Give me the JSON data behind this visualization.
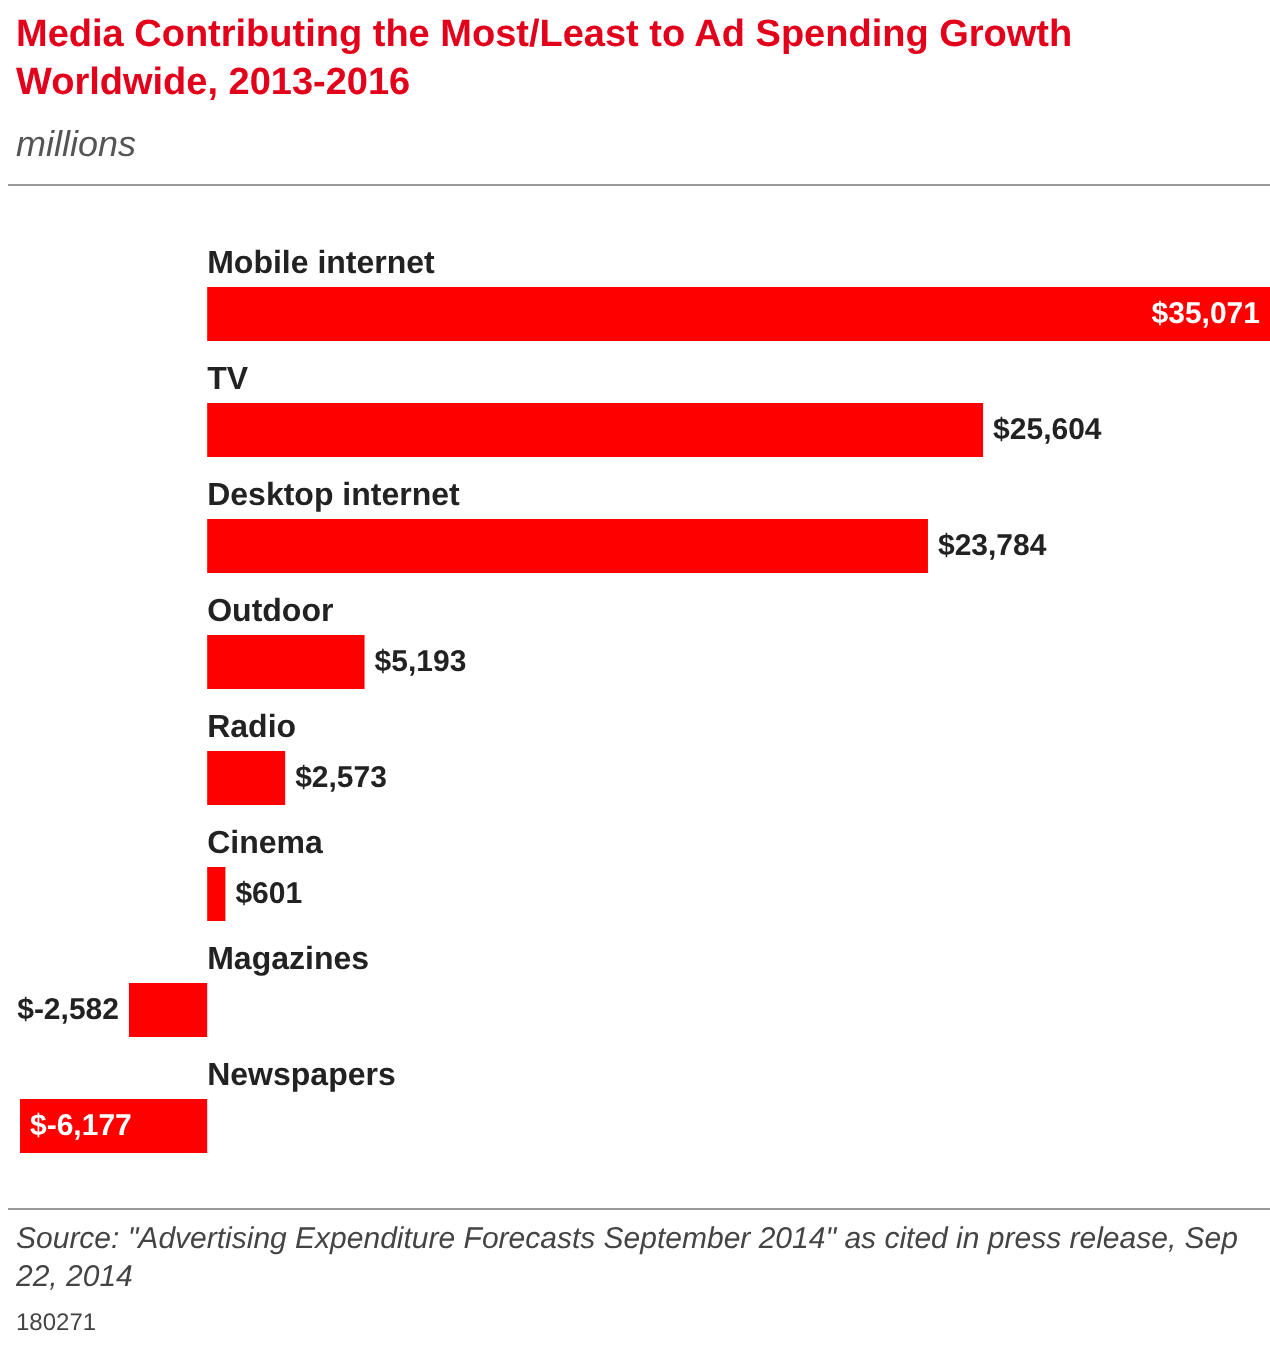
{
  "chart_data": {
    "type": "bar",
    "orientation": "horizontal",
    "title": "Media Contributing the Most/Least to Ad Spending Growth Worldwide, 2013-2016",
    "subtitle": "millions",
    "categories": [
      "Mobile internet",
      "TV",
      "Desktop internet",
      "Outdoor",
      "Radio",
      "Cinema",
      "Magazines",
      "Newspapers"
    ],
    "values": [
      35071,
      25604,
      23784,
      5193,
      2573,
      601,
      -2582,
      -6177
    ],
    "value_labels": [
      "$35,071",
      "$25,604",
      "$23,784",
      "$5,193",
      "$2,573",
      "$601",
      "$-2,582",
      "$-6,177"
    ],
    "color": "#ff0000",
    "annotations": [
      "Source: \"Advertising Expenditure Forecasts September 2014\" as cited in press release, Sep 22, 2014",
      "180271"
    ]
  }
}
